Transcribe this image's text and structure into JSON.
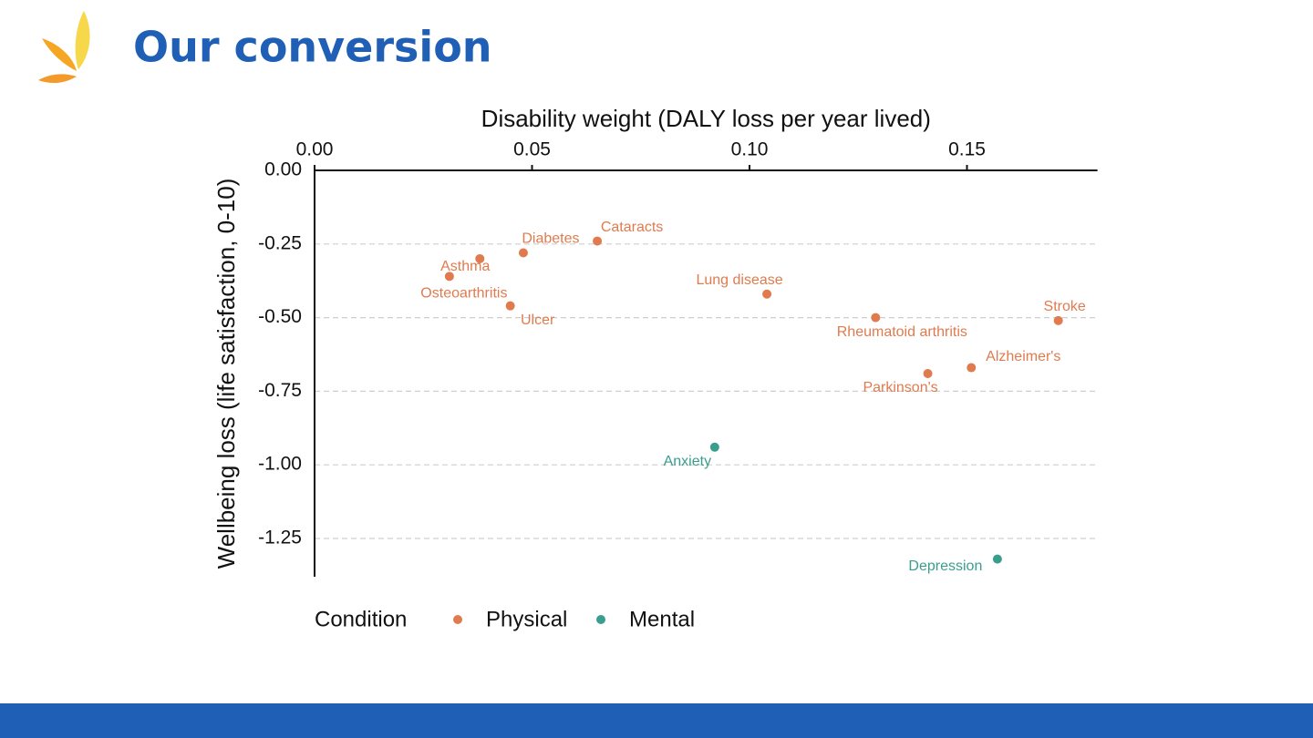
{
  "header": {
    "title": "Our conversion"
  },
  "chart_data": {
    "type": "scatter",
    "x_label": "Disability weight (DALY loss per year lived)",
    "y_label": "Wellbeing loss (life satisfaction, 0-10)",
    "xlim": [
      0,
      0.18
    ],
    "xticks": [
      {
        "value": 0,
        "label": "0.00"
      },
      0.05,
      {
        "value": 0.1,
        "label": "0.10"
      },
      0.15
    ],
    "ylim": [
      -1.38,
      0
    ],
    "yticks": [
      {
        "value": 0,
        "label": "0.00"
      },
      -0.25,
      {
        "value": -0.5,
        "label": "-0.50"
      },
      -0.75,
      {
        "value": -1,
        "label": "-1.00"
      },
      -1.25
    ],
    "grid": "y",
    "legend_title": "Condition",
    "legend_position": "bottom",
    "series": [
      {
        "name": "Physical",
        "color": "#e07b4f",
        "labels": [
          "Asthma",
          "Osteoarthritis",
          "Diabetes",
          "Cataracts",
          "Ulcer",
          "Lung disease",
          "Rheumatoid arthritis",
          "Stroke",
          "Alzheimer's",
          "Parkinson's"
        ],
        "x": [
          0.038,
          0.031,
          0.048,
          0.065,
          0.045,
          0.104,
          0.129,
          0.171,
          0.151,
          0.141
        ],
        "values": [
          -0.3,
          -0.36,
          -0.28,
          -0.24,
          -0.46,
          -0.42,
          -0.5,
          -0.51,
          -0.67,
          -0.69
        ]
      },
      {
        "name": "Mental",
        "color": "#3a9e8f",
        "labels": [
          "Anxiety",
          "Depression"
        ],
        "x": [
          0.092,
          0.157
        ],
        "values": [
          -0.94,
          -1.32
        ]
      }
    ]
  }
}
